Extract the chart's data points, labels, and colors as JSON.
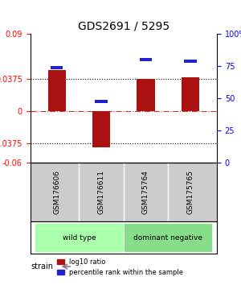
{
  "title": "GDS2691 / 5295",
  "samples": [
    "GSM176606",
    "GSM176611",
    "GSM175764",
    "GSM175765"
  ],
  "log10_ratios": [
    0.048,
    -0.042,
    0.038,
    0.04
  ],
  "percentile_ranks": [
    74,
    48,
    80,
    79
  ],
  "left_ylim": [
    -0.06,
    0.09
  ],
  "left_yticks": [
    -0.06,
    -0.0375,
    0,
    0.0375,
    0.09
  ],
  "left_yticklabels": [
    "-0.06",
    "-0.0375",
    "0",
    "0.0375",
    "0.09"
  ],
  "right_ylim": [
    0,
    100
  ],
  "right_yticks": [
    0,
    25,
    50,
    75,
    100
  ],
  "right_yticklabels": [
    "0",
    "25",
    "50",
    "75",
    "100%"
  ],
  "dotted_lines": [
    0.0375,
    -0.0375
  ],
  "zero_line": 0,
  "bar_color": "#aa1111",
  "blue_color": "#2222cc",
  "groups": [
    {
      "label": "wild type",
      "indices": [
        0,
        1
      ],
      "color": "#aaffaa"
    },
    {
      "label": "dominant negative",
      "indices": [
        2,
        3
      ],
      "color": "#88dd88"
    }
  ],
  "strain_label": "strain",
  "legend_red": "log10 ratio",
  "legend_blue": "percentile rank within the sample",
  "bar_width": 0.4,
  "background_color": "#ffffff"
}
